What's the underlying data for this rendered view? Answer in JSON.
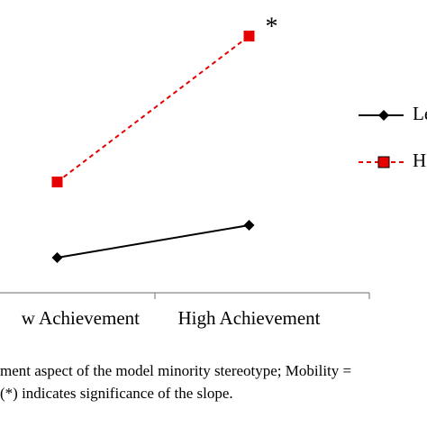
{
  "chart_data": {
    "type": "line",
    "categories": [
      "w Achievement",
      "High Achievement"
    ],
    "series": [
      {
        "name": "Le",
        "color": "#000000",
        "line_style": "solid",
        "marker": "diamond",
        "values": [
          1.3,
          2.5
        ]
      },
      {
        "name": "H",
        "color": "#e60000",
        "line_style": "dashed",
        "marker": "square",
        "values": [
          4.1,
          9.5
        ]
      }
    ],
    "ylim": [
      0,
      10
    ],
    "annotations": [
      {
        "text": "*",
        "series": 1,
        "point": 1
      }
    ],
    "caption": [
      "ment aspect of the model minority stereotype; Mobility =",
      "(*) indicates significance of the slope."
    ]
  }
}
